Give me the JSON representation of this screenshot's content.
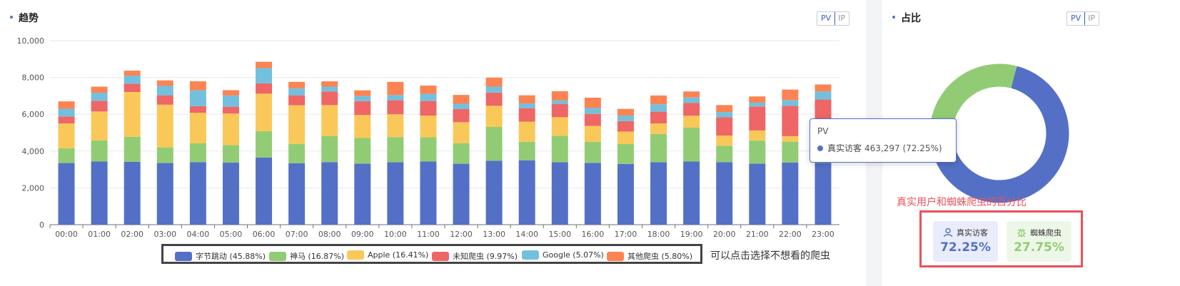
{
  "trend": {
    "title": "趋势",
    "toggle": [
      "PV",
      "IP"
    ],
    "legend_note": "可以点击选择不想看的爬虫"
  },
  "share": {
    "title": "占比",
    "toggle": [
      "PV",
      "IP"
    ],
    "annotation": "真实用户和蜘蛛爬虫的百分比",
    "tooltip": {
      "title": "PV",
      "series": "真实访客",
      "value": "463,297 (72.25%)"
    },
    "stats": [
      {
        "label": "真实访客",
        "value": "72.25%",
        "icon": "user-icon",
        "color": "#5470c6",
        "bg": "#e9edfb"
      },
      {
        "label": "蜘蛛爬虫",
        "value": "27.75%",
        "icon": "bug-icon",
        "color": "#91cc75",
        "bg": "#edf7e8"
      }
    ]
  },
  "chart_data": [
    {
      "type": "bar",
      "stacked": true,
      "categories": [
        "00:00",
        "01:00",
        "02:00",
        "03:00",
        "04:00",
        "05:00",
        "06:00",
        "07:00",
        "08:00",
        "09:00",
        "10:00",
        "11:00",
        "12:00",
        "13:00",
        "14:00",
        "15:00",
        "16:00",
        "17:00",
        "18:00",
        "19:00",
        "20:00",
        "21:00",
        "22:00",
        "23:00"
      ],
      "yticks": [
        "0",
        "2,000",
        "4,000",
        "6,000",
        "8,000",
        "10,000"
      ],
      "ylim": [
        0,
        10000
      ],
      "grid": true,
      "series": [
        {
          "name": "字节跳动",
          "legend": "字节跳动 (45.88%)",
          "color": "#5470c6",
          "values": [
            3350,
            3430,
            3420,
            3350,
            3400,
            3370,
            3650,
            3340,
            3400,
            3320,
            3390,
            3430,
            3310,
            3470,
            3500,
            3390,
            3360,
            3300,
            3390,
            3430,
            3400,
            3320,
            3380,
            3350
          ]
        },
        {
          "name": "神马",
          "legend": "神马 (16.87%)",
          "color": "#91cc75",
          "values": [
            800,
            1150,
            1350,
            850,
            1020,
            950,
            1430,
            1050,
            1420,
            1390,
            1370,
            1320,
            1120,
            1840,
            1000,
            1440,
            1140,
            1080,
            1540,
            1840,
            880,
            1250,
            1130,
            1350
          ]
        },
        {
          "name": "Apple",
          "legend": "Apple (16.41%)",
          "color": "#fac858",
          "values": [
            1350,
            1570,
            2440,
            2320,
            1660,
            1720,
            2040,
            2100,
            1680,
            1250,
            1240,
            1180,
            1140,
            1150,
            1100,
            1010,
            870,
            680,
            570,
            650,
            560,
            550,
            300,
            800
          ]
        },
        {
          "name": "未知爬虫",
          "legend": "未知爬虫 (9.97%)",
          "color": "#ee6666",
          "values": [
            380,
            580,
            450,
            510,
            360,
            370,
            560,
            540,
            740,
            750,
            760,
            790,
            710,
            720,
            730,
            710,
            650,
            570,
            640,
            700,
            1000,
            1300,
            1650,
            1300
          ]
        },
        {
          "name": "Google",
          "legend": "Google (5.07%)",
          "color": "#73c0de",
          "values": [
            420,
            440,
            440,
            510,
            860,
            610,
            830,
            380,
            260,
            280,
            280,
            390,
            290,
            320,
            260,
            200,
            320,
            300,
            400,
            290,
            280,
            210,
            310,
            440
          ]
        },
        {
          "name": "其他爬虫",
          "legend": "其他爬虫 (5.80%)",
          "color": "#fc8452",
          "values": [
            400,
            330,
            270,
            300,
            490,
            290,
            340,
            350,
            290,
            310,
            720,
            450,
            480,
            490,
            440,
            500,
            560,
            360,
            480,
            330,
            380,
            340,
            570,
            380
          ]
        }
      ]
    },
    {
      "type": "pie",
      "variant": "donut",
      "series": [
        {
          "name": "真实访客",
          "value": 72.25,
          "color": "#5470c6"
        },
        {
          "name": "蜘蛛爬虫",
          "value": 27.75,
          "color": "#91cc75"
        }
      ]
    }
  ]
}
